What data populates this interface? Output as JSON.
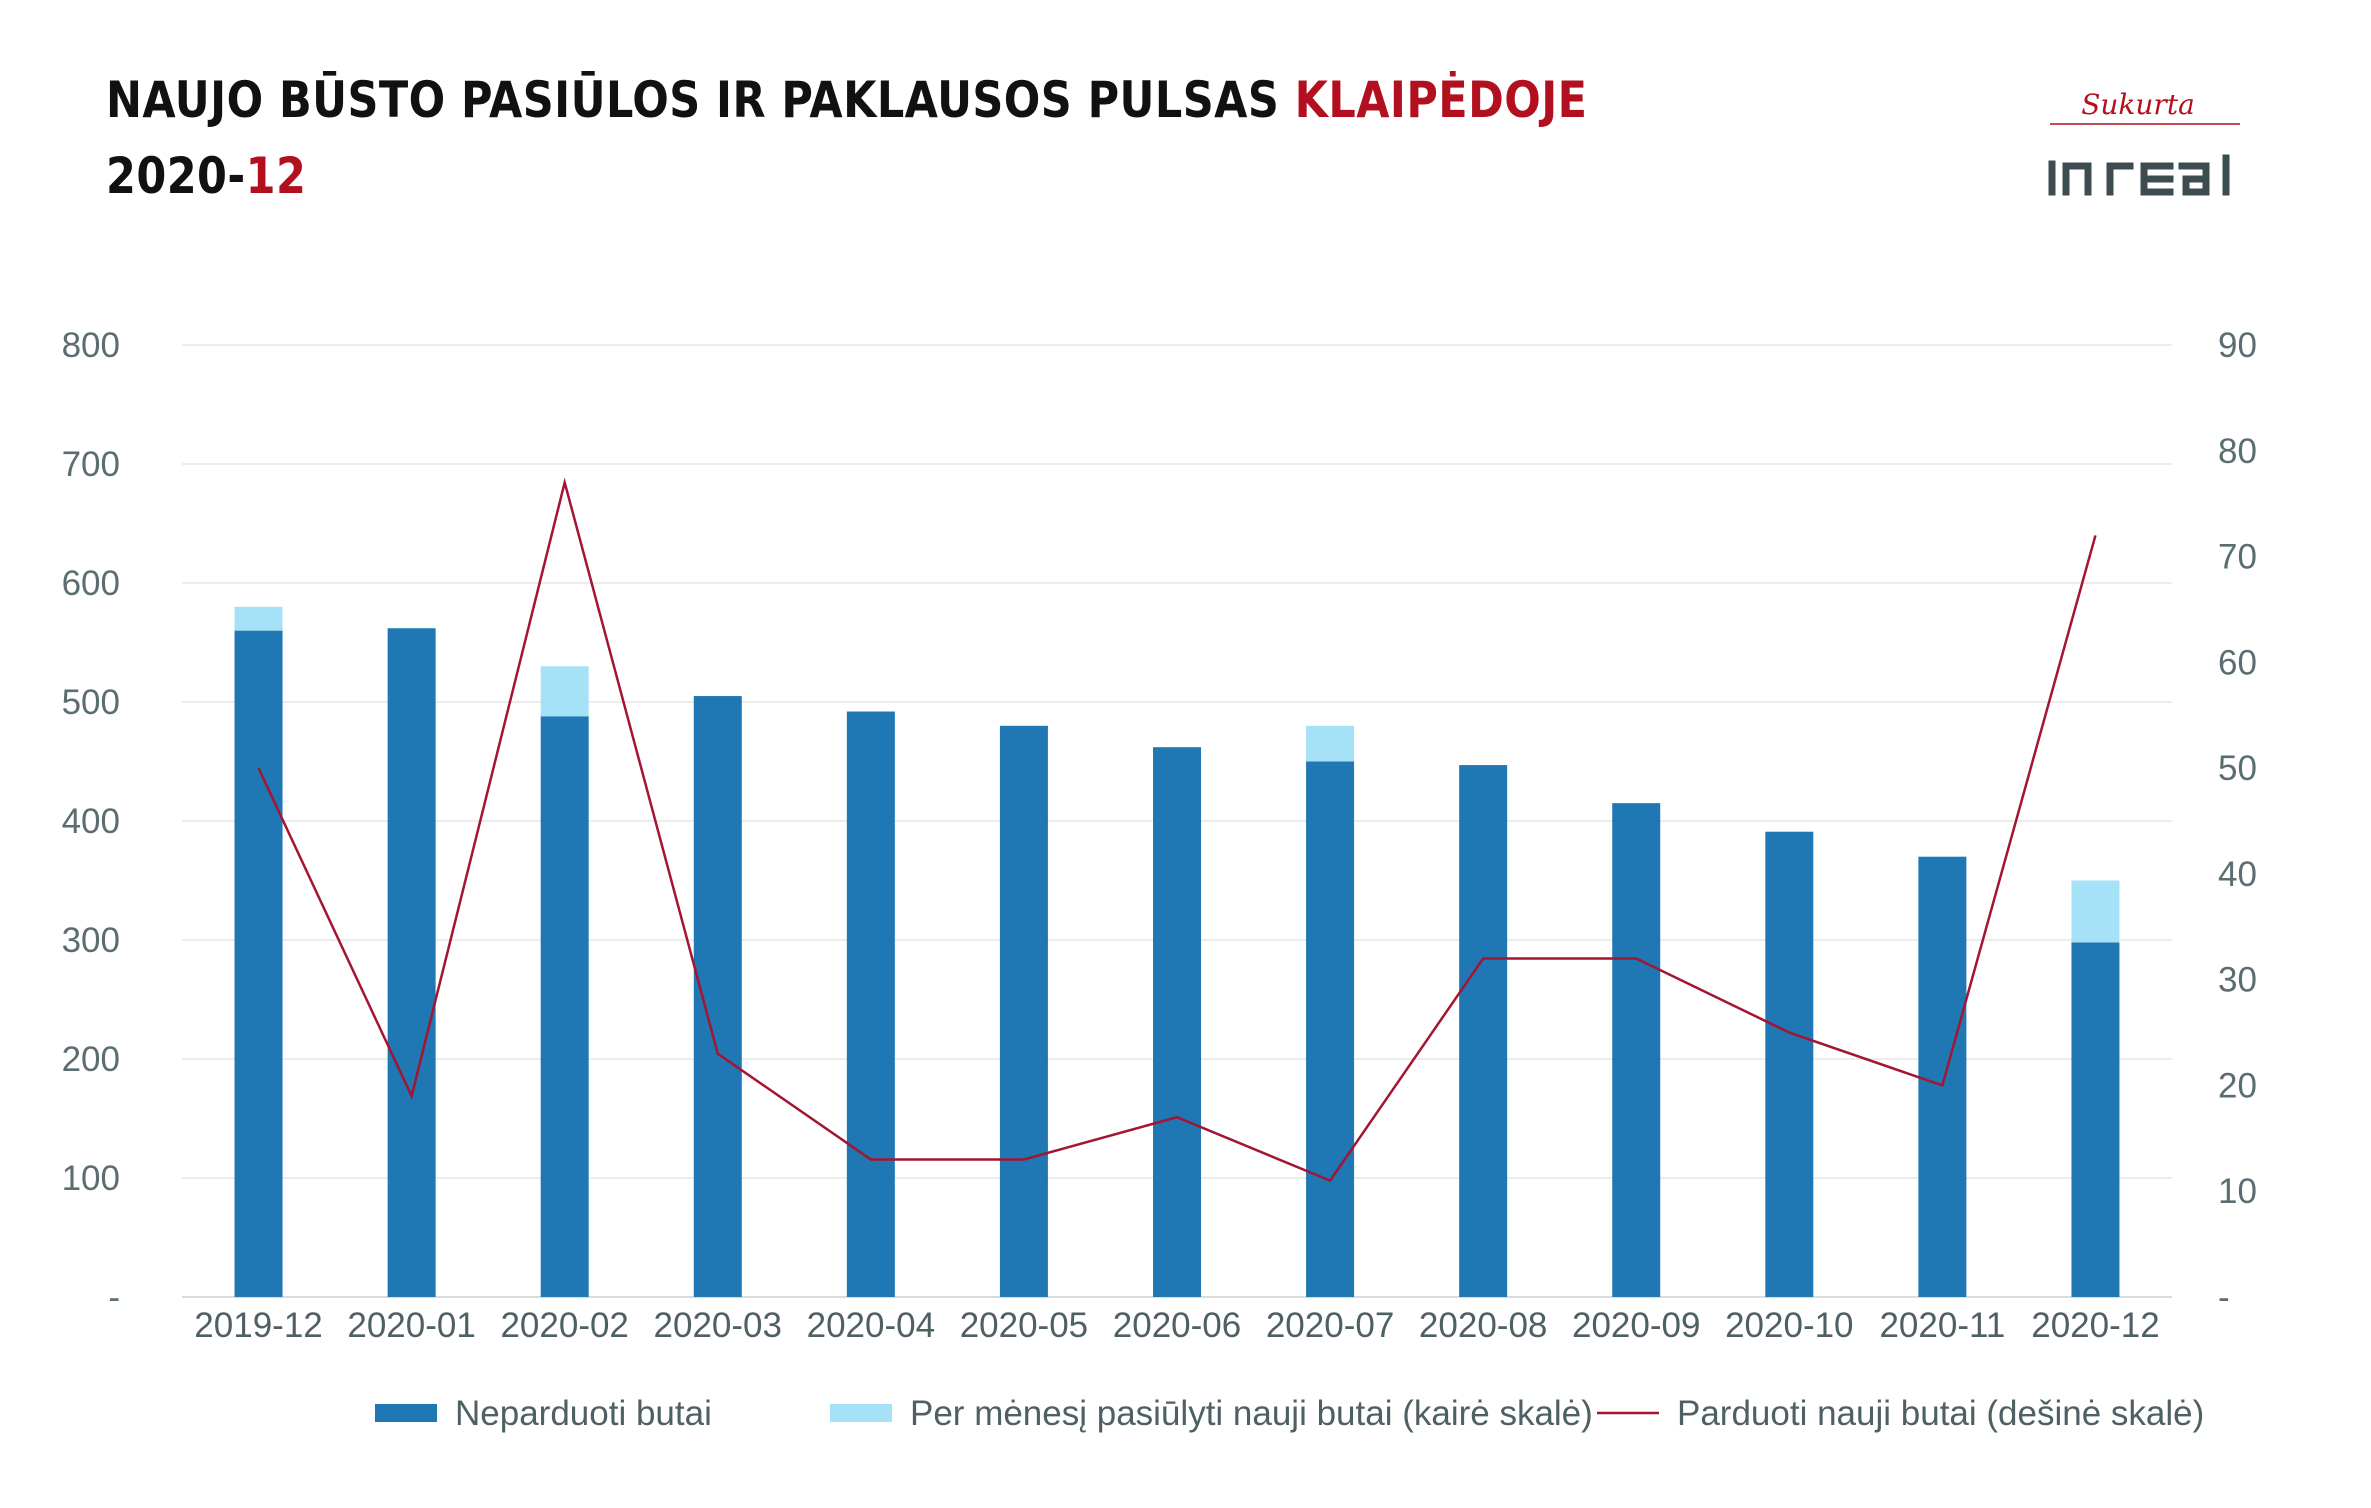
{
  "title": {
    "line1_main": "NAUJO BŪSTO PASIŪLOS IR PAKLAUSOS PULSAS ",
    "line1_accent": "KLAIPĖDOJE",
    "line2_main": "2020-",
    "line2_accent": "12"
  },
  "logo": {
    "top_text": "Sukurta",
    "brand_text": "in real"
  },
  "colors": {
    "title": "#111111",
    "accent": "#b3101f",
    "bar_unsold": "#1f77b4",
    "bar_offered": "#a6e2f7",
    "line_sold": "#a31530",
    "grid": "#e6e6e6",
    "tick_text": "#5a6e72",
    "logo": "#3d4c50"
  },
  "chart_data": {
    "type": "bar",
    "stacked": true,
    "categories": [
      "2019-12",
      "2020-01",
      "2020-02",
      "2020-03",
      "2020-04",
      "2020-05",
      "2020-06",
      "2020-07",
      "2020-08",
      "2020-09",
      "2020-10",
      "2020-11",
      "2020-12"
    ],
    "series": [
      {
        "name": "Neparduoti butai",
        "axis": "left",
        "type": "bar",
        "values": [
          560,
          562,
          488,
          505,
          492,
          480,
          462,
          450,
          447,
          415,
          391,
          370,
          298
        ]
      },
      {
        "name": "Per mėnesį pasiūlyti nauji butai (kairė skalė)",
        "axis": "left",
        "type": "bar",
        "values": [
          20,
          0,
          42,
          0,
          0,
          0,
          0,
          30,
          0,
          0,
          0,
          0,
          52
        ]
      },
      {
        "name": "Parduoti nauji butai (dešinė skalė)",
        "axis": "right",
        "type": "line",
        "values": [
          50,
          19,
          77,
          23,
          13,
          13,
          17,
          11,
          32,
          32,
          25,
          20,
          72
        ]
      }
    ],
    "y_left": {
      "min": 0,
      "max": 800,
      "ticks": [
        0,
        100,
        200,
        300,
        400,
        500,
        600,
        700,
        800
      ],
      "tick_labels": [
        "-",
        "100",
        "200",
        "300",
        "400",
        "500",
        "600",
        "700",
        "800"
      ]
    },
    "y_right": {
      "min": 0,
      "max": 90,
      "ticks": [
        0,
        10,
        20,
        30,
        40,
        50,
        60,
        70,
        80,
        90
      ],
      "tick_labels": [
        "-",
        "10",
        "20",
        "30",
        "40",
        "50",
        "60",
        "70",
        "80",
        "90"
      ]
    },
    "grid": true,
    "legend_position": "bottom"
  }
}
